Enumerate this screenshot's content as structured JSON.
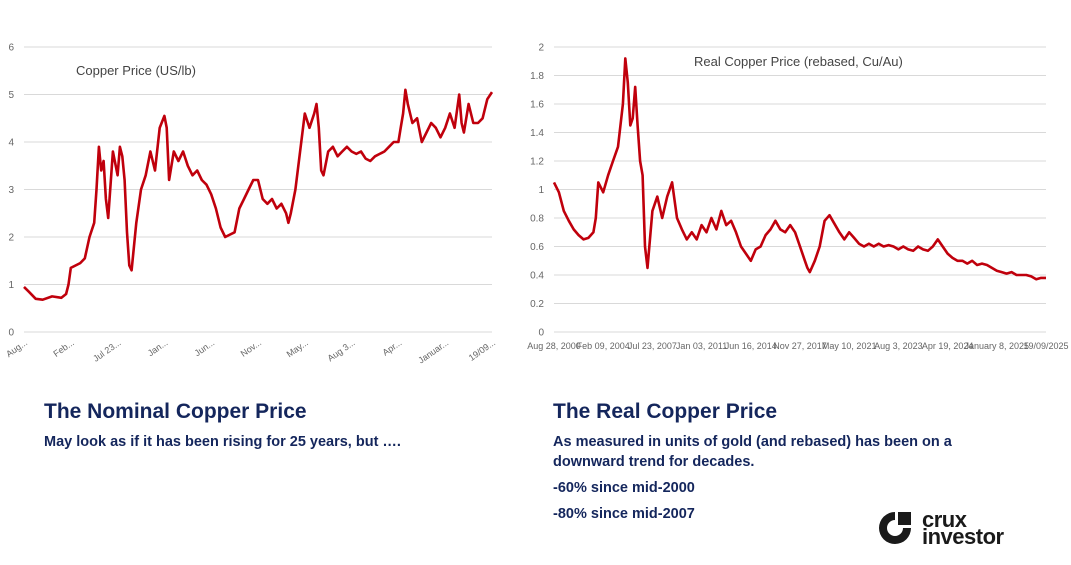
{
  "chart_data": [
    {
      "type": "line",
      "title": "Copper Price (US/lb)",
      "ylim": [
        0,
        6
      ],
      "y_ticks": [
        "0",
        "1",
        "2",
        "3",
        "4",
        "5",
        "6"
      ],
      "x_tick_labels": [
        "Aug...",
        "Feb...",
        "Jul 23...",
        "Jan...",
        "Jun...",
        "Nov...",
        "May...",
        "Aug 3...",
        "Apr...",
        "Januar...",
        "19/09..."
      ],
      "grid": true,
      "series": [
        {
          "color": "#c0000c",
          "points": [
            [
              0,
              0.95
            ],
            [
              0.01,
              0.85
            ],
            [
              0.025,
              0.7
            ],
            [
              0.04,
              0.68
            ],
            [
              0.06,
              0.75
            ],
            [
              0.08,
              0.72
            ],
            [
              0.09,
              0.8
            ],
            [
              0.095,
              1.0
            ],
            [
              0.1,
              1.35
            ],
            [
              0.11,
              1.4
            ],
            [
              0.12,
              1.45
            ],
            [
              0.13,
              1.55
            ],
            [
              0.14,
              2.0
            ],
            [
              0.15,
              2.3
            ],
            [
              0.155,
              3.0
            ],
            [
              0.16,
              3.9
            ],
            [
              0.165,
              3.4
            ],
            [
              0.17,
              3.6
            ],
            [
              0.175,
              2.8
            ],
            [
              0.18,
              2.4
            ],
            [
              0.19,
              3.8
            ],
            [
              0.2,
              3.3
            ],
            [
              0.205,
              3.9
            ],
            [
              0.21,
              3.7
            ],
            [
              0.215,
              3.2
            ],
            [
              0.22,
              2.1
            ],
            [
              0.225,
              1.4
            ],
            [
              0.23,
              1.3
            ],
            [
              0.24,
              2.3
            ],
            [
              0.25,
              3.0
            ],
            [
              0.26,
              3.3
            ],
            [
              0.27,
              3.8
            ],
            [
              0.28,
              3.4
            ],
            [
              0.29,
              4.3
            ],
            [
              0.3,
              4.55
            ],
            [
              0.305,
              4.3
            ],
            [
              0.31,
              3.2
            ],
            [
              0.32,
              3.8
            ],
            [
              0.33,
              3.6
            ],
            [
              0.34,
              3.8
            ],
            [
              0.35,
              3.5
            ],
            [
              0.36,
              3.3
            ],
            [
              0.37,
              3.4
            ],
            [
              0.38,
              3.2
            ],
            [
              0.39,
              3.1
            ],
            [
              0.4,
              2.9
            ],
            [
              0.41,
              2.6
            ],
            [
              0.42,
              2.2
            ],
            [
              0.43,
              2.0
            ],
            [
              0.44,
              2.05
            ],
            [
              0.45,
              2.1
            ],
            [
              0.46,
              2.6
            ],
            [
              0.47,
              2.8
            ],
            [
              0.48,
              3.0
            ],
            [
              0.49,
              3.2
            ],
            [
              0.5,
              3.2
            ],
            [
              0.51,
              2.8
            ],
            [
              0.52,
              2.7
            ],
            [
              0.53,
              2.8
            ],
            [
              0.54,
              2.6
            ],
            [
              0.55,
              2.7
            ],
            [
              0.56,
              2.5
            ],
            [
              0.565,
              2.3
            ],
            [
              0.57,
              2.5
            ],
            [
              0.58,
              3.0
            ],
            [
              0.59,
              3.8
            ],
            [
              0.6,
              4.6
            ],
            [
              0.61,
              4.3
            ],
            [
              0.62,
              4.6
            ],
            [
              0.625,
              4.8
            ],
            [
              0.63,
              4.3
            ],
            [
              0.635,
              3.4
            ],
            [
              0.64,
              3.3
            ],
            [
              0.65,
              3.8
            ],
            [
              0.66,
              3.9
            ],
            [
              0.67,
              3.7
            ],
            [
              0.68,
              3.8
            ],
            [
              0.69,
              3.9
            ],
            [
              0.7,
              3.8
            ],
            [
              0.71,
              3.75
            ],
            [
              0.72,
              3.8
            ],
            [
              0.73,
              3.65
            ],
            [
              0.74,
              3.6
            ],
            [
              0.75,
              3.7
            ],
            [
              0.76,
              3.75
            ],
            [
              0.77,
              3.8
            ],
            [
              0.78,
              3.9
            ],
            [
              0.79,
              4.0
            ],
            [
              0.8,
              4.0
            ],
            [
              0.805,
              4.3
            ],
            [
              0.81,
              4.6
            ],
            [
              0.815,
              5.1
            ],
            [
              0.82,
              4.8
            ],
            [
              0.83,
              4.4
            ],
            [
              0.84,
              4.5
            ],
            [
              0.85,
              4.0
            ],
            [
              0.86,
              4.2
            ],
            [
              0.87,
              4.4
            ],
            [
              0.88,
              4.3
            ],
            [
              0.89,
              4.1
            ],
            [
              0.9,
              4.3
            ],
            [
              0.91,
              4.6
            ],
            [
              0.92,
              4.3
            ],
            [
              0.93,
              5.0
            ],
            [
              0.935,
              4.4
            ],
            [
              0.94,
              4.2
            ],
            [
              0.95,
              4.8
            ],
            [
              0.96,
              4.4
            ],
            [
              0.97,
              4.4
            ],
            [
              0.98,
              4.5
            ],
            [
              0.99,
              4.9
            ],
            [
              1.0,
              5.05
            ]
          ]
        }
      ]
    },
    {
      "type": "line",
      "title": "Real Copper Price (rebased, Cu/Au)",
      "ylim": [
        0,
        2
      ],
      "y_ticks": [
        "0",
        "0.2",
        "0.4",
        "0.6",
        "0.8",
        "1",
        "1.2",
        "1.4",
        "1.6",
        "1.8",
        "2"
      ],
      "x_tick_labels": [
        "Aug 28, 2000",
        "Feb 09, 2004",
        "Jul 23, 2007",
        "Jan 03, 2011",
        "Jun 16, 2014",
        "Nov 27, 2017",
        "May 10, 2021",
        "Aug 3, 2023",
        "Apr 19, 2024",
        "January 8, 2025",
        "19/09/2025"
      ],
      "grid": true,
      "series": [
        {
          "color": "#c0000c",
          "points": [
            [
              0,
              1.05
            ],
            [
              0.01,
              0.98
            ],
            [
              0.02,
              0.85
            ],
            [
              0.03,
              0.78
            ],
            [
              0.04,
              0.72
            ],
            [
              0.05,
              0.68
            ],
            [
              0.06,
              0.65
            ],
            [
              0.07,
              0.66
            ],
            [
              0.08,
              0.7
            ],
            [
              0.085,
              0.8
            ],
            [
              0.09,
              1.05
            ],
            [
              0.1,
              0.98
            ],
            [
              0.11,
              1.1
            ],
            [
              0.12,
              1.2
            ],
            [
              0.13,
              1.3
            ],
            [
              0.14,
              1.6
            ],
            [
              0.145,
              1.92
            ],
            [
              0.15,
              1.75
            ],
            [
              0.155,
              1.45
            ],
            [
              0.16,
              1.5
            ],
            [
              0.165,
              1.72
            ],
            [
              0.17,
              1.45
            ],
            [
              0.175,
              1.2
            ],
            [
              0.18,
              1.1
            ],
            [
              0.185,
              0.6
            ],
            [
              0.19,
              0.45
            ],
            [
              0.2,
              0.85
            ],
            [
              0.21,
              0.95
            ],
            [
              0.22,
              0.8
            ],
            [
              0.23,
              0.95
            ],
            [
              0.24,
              1.05
            ],
            [
              0.25,
              0.8
            ],
            [
              0.26,
              0.72
            ],
            [
              0.27,
              0.65
            ],
            [
              0.28,
              0.7
            ],
            [
              0.29,
              0.65
            ],
            [
              0.3,
              0.75
            ],
            [
              0.31,
              0.7
            ],
            [
              0.32,
              0.8
            ],
            [
              0.33,
              0.72
            ],
            [
              0.34,
              0.85
            ],
            [
              0.35,
              0.75
            ],
            [
              0.36,
              0.78
            ],
            [
              0.37,
              0.7
            ],
            [
              0.38,
              0.6
            ],
            [
              0.39,
              0.55
            ],
            [
              0.4,
              0.5
            ],
            [
              0.41,
              0.58
            ],
            [
              0.42,
              0.6
            ],
            [
              0.43,
              0.68
            ],
            [
              0.44,
              0.72
            ],
            [
              0.45,
              0.78
            ],
            [
              0.46,
              0.72
            ],
            [
              0.47,
              0.7
            ],
            [
              0.48,
              0.75
            ],
            [
              0.49,
              0.7
            ],
            [
              0.5,
              0.6
            ],
            [
              0.51,
              0.5
            ],
            [
              0.515,
              0.45
            ],
            [
              0.52,
              0.42
            ],
            [
              0.53,
              0.5
            ],
            [
              0.54,
              0.6
            ],
            [
              0.55,
              0.78
            ],
            [
              0.56,
              0.82
            ],
            [
              0.57,
              0.76
            ],
            [
              0.58,
              0.7
            ],
            [
              0.59,
              0.65
            ],
            [
              0.6,
              0.7
            ],
            [
              0.61,
              0.66
            ],
            [
              0.62,
              0.62
            ],
            [
              0.63,
              0.6
            ],
            [
              0.64,
              0.62
            ],
            [
              0.65,
              0.6
            ],
            [
              0.66,
              0.62
            ],
            [
              0.67,
              0.6
            ],
            [
              0.68,
              0.61
            ],
            [
              0.69,
              0.6
            ],
            [
              0.7,
              0.58
            ],
            [
              0.71,
              0.6
            ],
            [
              0.72,
              0.58
            ],
            [
              0.73,
              0.57
            ],
            [
              0.74,
              0.6
            ],
            [
              0.75,
              0.58
            ],
            [
              0.76,
              0.57
            ],
            [
              0.77,
              0.6
            ],
            [
              0.78,
              0.65
            ],
            [
              0.79,
              0.6
            ],
            [
              0.8,
              0.55
            ],
            [
              0.81,
              0.52
            ],
            [
              0.82,
              0.5
            ],
            [
              0.83,
              0.5
            ],
            [
              0.84,
              0.48
            ],
            [
              0.85,
              0.5
            ],
            [
              0.86,
              0.47
            ],
            [
              0.87,
              0.48
            ],
            [
              0.88,
              0.47
            ],
            [
              0.89,
              0.45
            ],
            [
              0.9,
              0.43
            ],
            [
              0.91,
              0.42
            ],
            [
              0.92,
              0.41
            ],
            [
              0.93,
              0.42
            ],
            [
              0.94,
              0.4
            ],
            [
              0.95,
              0.4
            ],
            [
              0.96,
              0.4
            ],
            [
              0.97,
              0.39
            ],
            [
              0.98,
              0.37
            ],
            [
              0.99,
              0.38
            ],
            [
              1.0,
              0.38
            ]
          ]
        }
      ]
    }
  ],
  "left_caption": {
    "title": "The Nominal Copper Price",
    "line1": "May look as if it has been rising for 25 years, but …."
  },
  "right_caption": {
    "title": "The Real Copper Price",
    "line1": "As measured in units of gold (and rebased) has been on a",
    "line2": "downward trend for decades.",
    "line3": "-60% since mid-2000",
    "line4": "-80% since mid-2007"
  },
  "logo": {
    "line1": "crux",
    "line2": "investor",
    "icon": "crux-logo-icon"
  }
}
